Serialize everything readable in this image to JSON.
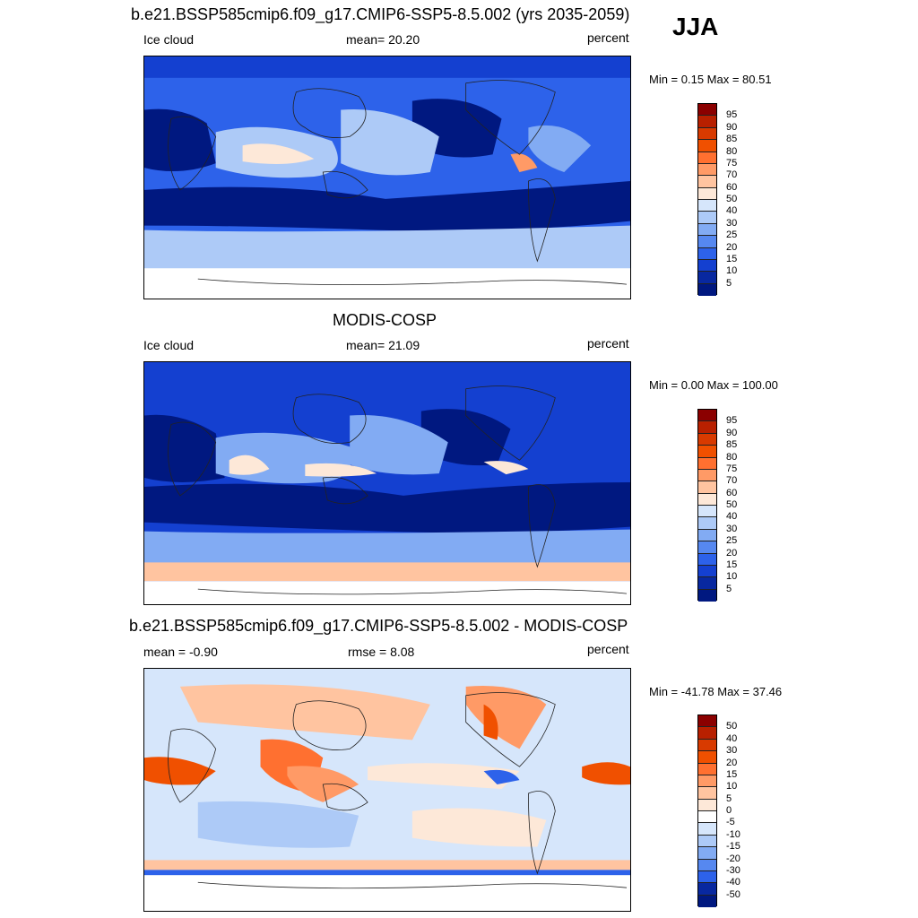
{
  "season": "JJA",
  "panels": [
    {
      "title": "b.e21.BSSP585cmip6.f09_g17.CMIP6-SSP5-8.5.002 (yrs 2035-2059)",
      "left_label": "Ice cloud",
      "center_label": "mean=  20.20",
      "right_label": "percent",
      "minmax": "Min =   0.15 Max =  80.51",
      "colorbar_levels": [
        "95",
        "90",
        "85",
        "80",
        "75",
        "70",
        "60",
        "50",
        "40",
        "30",
        "25",
        "20",
        "15",
        "10",
        "5"
      ],
      "colorbar_colors": [
        "#8b0000",
        "#b82000",
        "#d83a00",
        "#f05000",
        "#ff7030",
        "#ff9a66",
        "#ffc4a0",
        "#fde8d8",
        "#d6e6fb",
        "#adcaf7",
        "#82abf3",
        "#5688f0",
        "#2d62ea",
        "#1440d0",
        "#0828a0",
        "#001880"
      ]
    },
    {
      "title": "MODIS-COSP",
      "left_label": "Ice cloud",
      "center_label": "mean=  21.09",
      "right_label": "percent",
      "minmax": "Min =   0.00 Max = 100.00",
      "colorbar_levels": [
        "95",
        "90",
        "85",
        "80",
        "75",
        "70",
        "60",
        "50",
        "40",
        "30",
        "25",
        "20",
        "15",
        "10",
        "5"
      ],
      "colorbar_colors": [
        "#8b0000",
        "#b82000",
        "#d83a00",
        "#f05000",
        "#ff7030",
        "#ff9a66",
        "#ffc4a0",
        "#fde8d8",
        "#d6e6fb",
        "#adcaf7",
        "#82abf3",
        "#5688f0",
        "#2d62ea",
        "#1440d0",
        "#0828a0",
        "#001880"
      ]
    },
    {
      "title": "b.e21.BSSP585cmip6.f09_g17.CMIP6-SSP5-8.5.002 - MODIS-COSP",
      "left_label": "mean =  -0.90",
      "center_label": "rmse =   8.08",
      "right_label": "percent",
      "minmax": "Min = -41.78 Max =  37.46",
      "colorbar_levels": [
        "50",
        "40",
        "30",
        "20",
        "15",
        "10",
        "5",
        "0",
        "-5",
        "-10",
        "-15",
        "-20",
        "-30",
        "-40",
        "-50"
      ],
      "colorbar_colors": [
        "#8b0000",
        "#b82000",
        "#d83a00",
        "#f05000",
        "#ff7030",
        "#ff9a66",
        "#ffc4a0",
        "#fde8d8",
        "#ffffff",
        "#d6e6fb",
        "#adcaf7",
        "#82abf3",
        "#5688f0",
        "#2d62ea",
        "#0828a0",
        "#001880"
      ]
    }
  ]
}
